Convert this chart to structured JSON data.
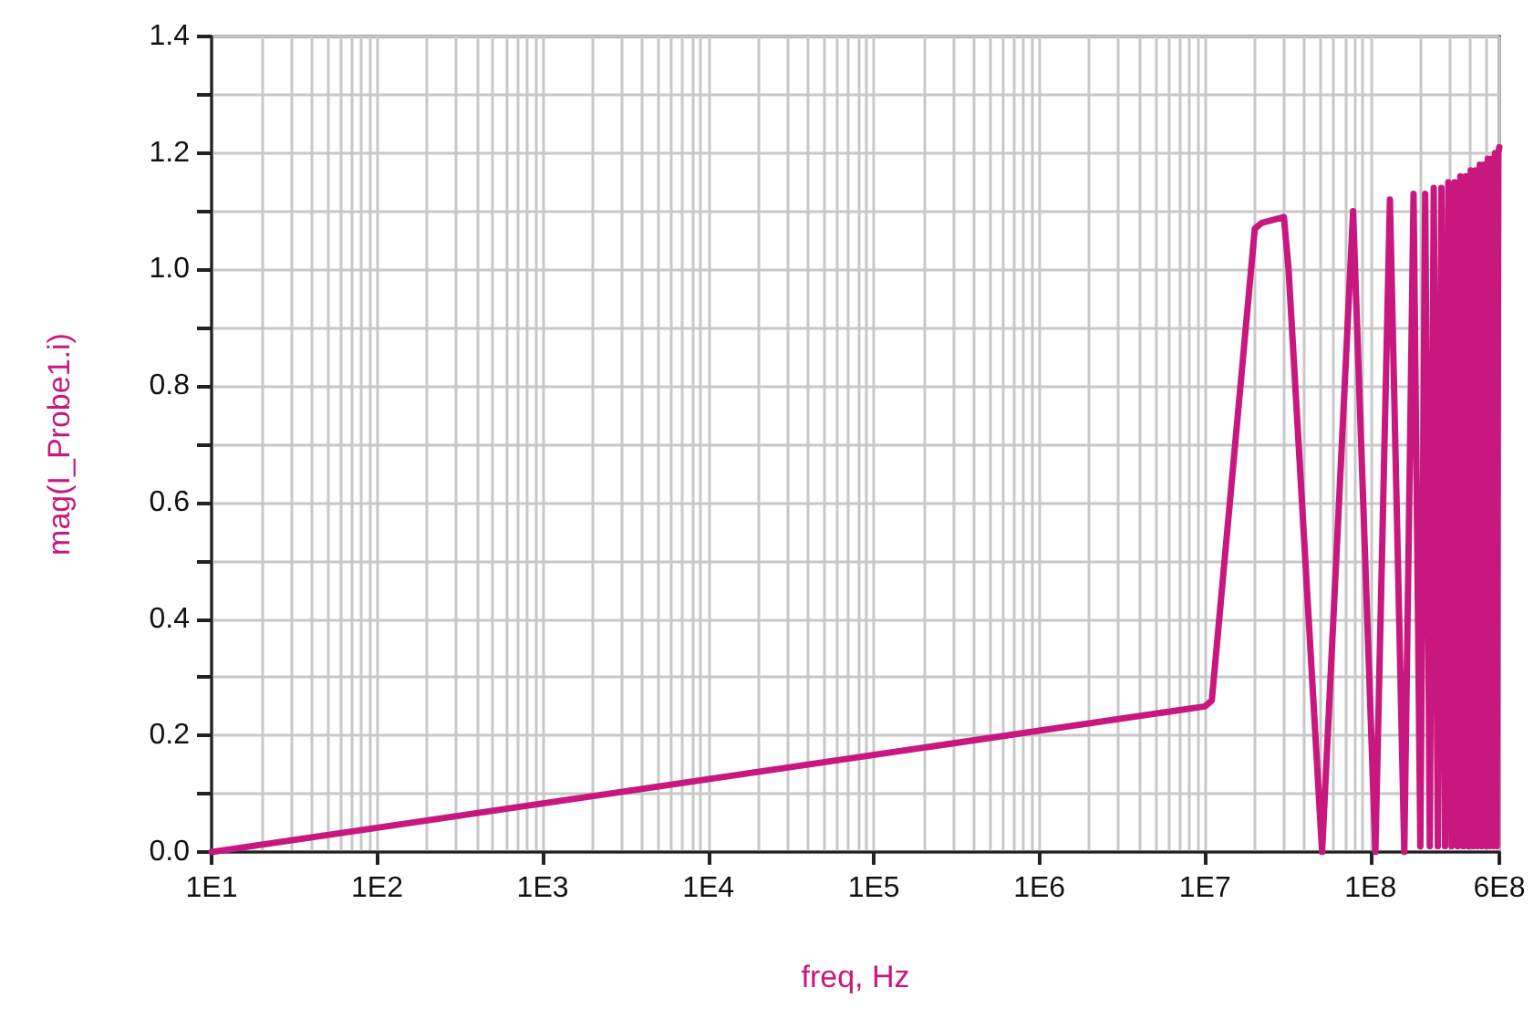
{
  "chart_data": {
    "type": "line",
    "xlabel": "freq, Hz",
    "ylabel": "mag(I_Probe1.i)",
    "log": "x",
    "grid": true,
    "marker": "none",
    "line_style": "solid",
    "xlim": [
      10,
      600000000
    ],
    "ylim": [
      0,
      1.4
    ],
    "xticks": [
      {
        "value": 10,
        "label": "1E1"
      },
      {
        "value": 100,
        "label": "1E2"
      },
      {
        "value": 1000,
        "label": "1E3"
      },
      {
        "value": 10000,
        "label": "1E4"
      },
      {
        "value": 100000,
        "label": "1E5"
      },
      {
        "value": 1000000,
        "label": "1E6"
      },
      {
        "value": 10000000,
        "label": "1E7"
      },
      {
        "value": 100000000,
        "label": "1E8"
      },
      {
        "value": 600000000,
        "label": "6E8"
      }
    ],
    "yticks": [
      {
        "value": 0,
        "label": "0.0"
      },
      {
        "value": 0.1,
        "label": null
      },
      {
        "value": 0.2,
        "label": "0.2"
      },
      {
        "value": 0.3,
        "label": null
      },
      {
        "value": 0.4,
        "label": "0.4"
      },
      {
        "value": 0.5,
        "label": null
      },
      {
        "value": 0.6,
        "label": "0.6"
      },
      {
        "value": 0.7,
        "label": null
      },
      {
        "value": 0.8,
        "label": "0.8"
      },
      {
        "value": 0.9,
        "label": null
      },
      {
        "value": 1.0,
        "label": "1.0"
      },
      {
        "value": 1.1,
        "label": null
      },
      {
        "value": 1.2,
        "label": "1.2"
      },
      {
        "value": 1.3,
        "label": null
      },
      {
        "value": 1.4,
        "label": "1.4"
      }
    ],
    "series": [
      {
        "color": "#c8177f",
        "x": [
          10,
          10000000,
          11000000,
          20000000,
          22000000,
          30000000,
          32000000,
          51000000,
          78500000,
          107000000,
          131000000,
          160000000,
          182000000,
          200000000,
          214000000,
          228000000,
          241000000,
          255000000,
          268000000,
          282000000,
          295000000,
          309000000,
          322000000,
          336000000,
          349000000,
          363000000,
          376000000,
          390000000,
          403000000,
          417000000,
          430000000,
          444000000,
          457000000,
          471000000,
          484000000,
          498000000,
          511000000,
          525000000,
          538000000,
          552000000,
          565000000,
          579000000,
          592000000,
          600000000
        ],
        "values": [
          0,
          0.25,
          0.26,
          1.07,
          1.08,
          1.09,
          1.0,
          0,
          1.1,
          0,
          1.12,
          0,
          1.13,
          0.01,
          1.13,
          0.01,
          1.14,
          0.01,
          1.14,
          0.01,
          1.15,
          0.01,
          1.15,
          0.01,
          1.16,
          0.01,
          1.16,
          0.01,
          1.17,
          0.01,
          1.17,
          0.01,
          1.18,
          0.01,
          1.18,
          0.01,
          1.19,
          0.01,
          1.19,
          0.01,
          1.2,
          0.01,
          1.2,
          1.21
        ]
      }
    ]
  }
}
